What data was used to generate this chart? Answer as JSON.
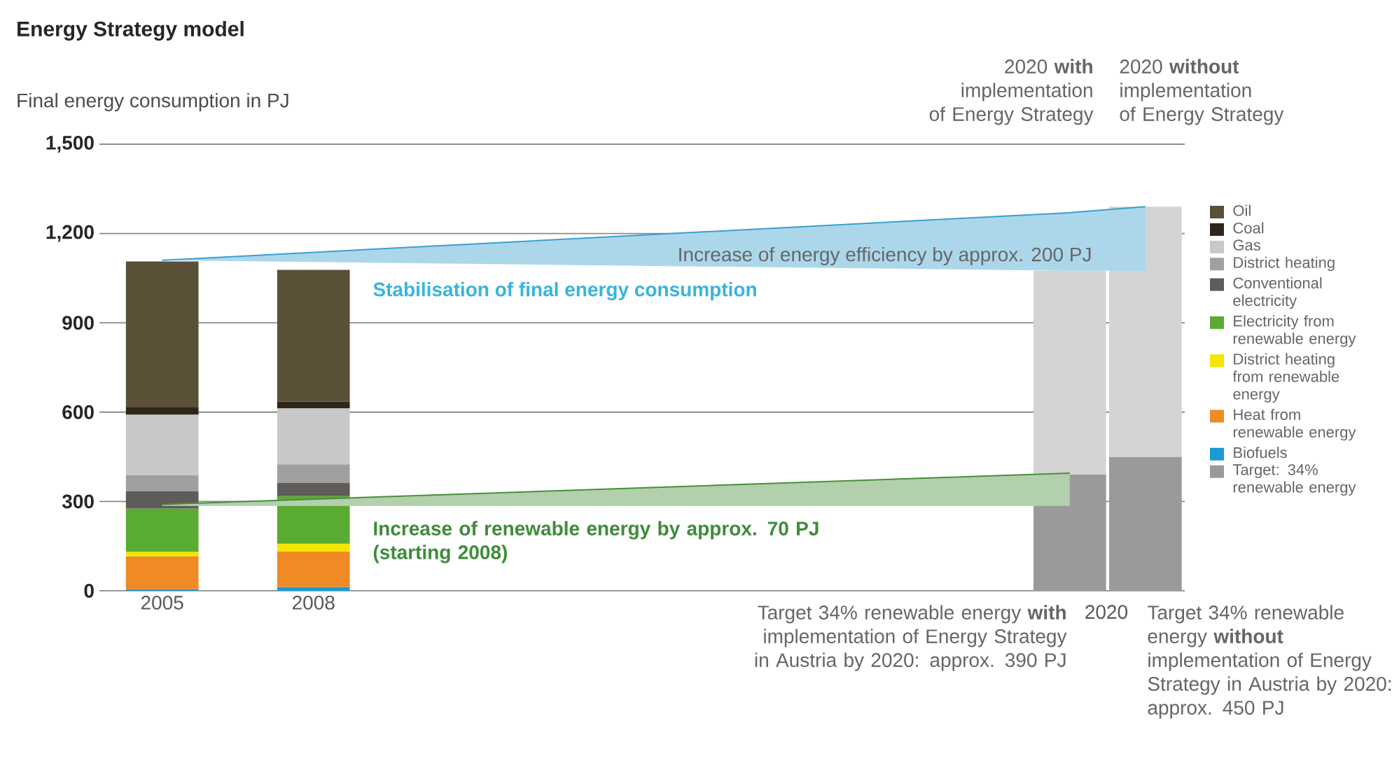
{
  "chart_data": {
    "type": "bar",
    "stacked": true,
    "title": "Energy Strategy model",
    "ylabel": "Final energy consumption in PJ",
    "categories": [
      "2005",
      null,
      "2008",
      null,
      null,
      null,
      null,
      null,
      null,
      null,
      null,
      null,
      null,
      null
    ],
    "ylim": [
      0,
      1500
    ],
    "yticks": [
      0,
      300,
      600,
      900,
      {
        "value": 1200,
        "label": "1,200"
      },
      {
        "value": 1500,
        "label": "1,500"
      }
    ],
    "grid": "y",
    "legend": "right",
    "series": [
      {
        "type": "line",
        "color": "#3a9fd0",
        "values": [
          1110,
          null,
          null,
          null,
          null,
          null,
          null,
          null,
          null,
          null,
          null,
          null,
          1270,
          1290
        ],
        "upper": [
          1110,
          null,
          null,
          null,
          null,
          null,
          null,
          null,
          null,
          null,
          null,
          null,
          1270,
          1290
        ],
        "lower": [
          1110,
          null,
          null,
          null,
          null,
          null,
          null,
          null,
          null,
          null,
          null,
          null,
          1075,
          1075
        ]
      },
      {
        "type": "line",
        "color": "#4a8f3c",
        "values": [
          290,
          null,
          null,
          null,
          null,
          null,
          null,
          null,
          null,
          null,
          null,
          null,
          395,
          null
        ],
        "upper": [
          290,
          null,
          null,
          null,
          null,
          null,
          null,
          null,
          null,
          null,
          null,
          null,
          395,
          null
        ],
        "lower": [
          285,
          null,
          null,
          null,
          null,
          null,
          null,
          null,
          null,
          null,
          null,
          null,
          285,
          null
        ]
      },
      {
        "name": "Biofuels",
        "color": "#1a9ad6",
        "values": [
          5,
          null,
          13,
          null,
          null,
          null,
          null,
          null,
          null,
          null,
          null,
          null,
          null,
          null
        ]
      },
      {
        "name": "Heat from renewable energy",
        "color": "#f08a24",
        "values": [
          111,
          null,
          119,
          null,
          null,
          null,
          null,
          null,
          null,
          null,
          null,
          null,
          null,
          null
        ]
      },
      {
        "name": "District heating from renewable energy",
        "color": "#f5e600",
        "values": [
          15,
          null,
          26,
          null,
          null,
          null,
          null,
          null,
          null,
          null,
          null,
          null,
          null,
          null
        ]
      },
      {
        "name": "Electricity from renewable energy",
        "color": "#5aab32",
        "values": [
          145,
          null,
          160,
          null,
          null,
          null,
          null,
          null,
          null,
          null,
          null,
          null,
          null,
          null
        ]
      },
      {
        "name": "Conventional electricity",
        "color": "#5f5b58",
        "values": [
          58,
          null,
          44,
          null,
          null,
          null,
          null,
          null,
          null,
          null,
          null,
          null,
          null,
          null
        ]
      },
      {
        "name": "District heating",
        "color": "#a0a0a0",
        "values": [
          55,
          null,
          63,
          null,
          null,
          null,
          null,
          null,
          null,
          null,
          null,
          null,
          null,
          null
        ]
      },
      {
        "name": "Gas",
        "color": "#c8c8c8",
        "values": [
          203,
          null,
          188,
          null,
          null,
          null,
          null,
          null,
          null,
          null,
          null,
          null,
          null,
          null
        ]
      },
      {
        "name": "Coal",
        "color": "#2e2618",
        "values": [
          24,
          null,
          23,
          null,
          null,
          null,
          null,
          null,
          null,
          null,
          null,
          null,
          null,
          null
        ]
      },
      {
        "name": "Oil",
        "color": "#5a5038",
        "values": [
          490,
          null,
          442,
          null,
          null,
          null,
          null,
          null,
          null,
          null,
          null,
          null,
          null,
          null
        ]
      },
      {
        "name": "Target: 34% renewable energy",
        "color": "#9a9a9a",
        "values": [
          null,
          null,
          null,
          null,
          null,
          null,
          null,
          null,
          null,
          null,
          null,
          null,
          390,
          450
        ]
      },
      {
        "color": "#d4d4d4",
        "values": [
          null,
          null,
          null,
          null,
          null,
          null,
          null,
          null,
          null,
          null,
          null,
          null,
          685,
          840
        ]
      }
    ],
    "annotations": [
      "Increase of energy efficiency by approx. 200 PJ",
      "Stabilisation of final energy consumption",
      "Increase of renewable energy by approx. 70 PJ (starting 2008)",
      "2020 **with** implementation of Energy Strategy",
      "2020 **without** implementation of Energy Strategy",
      "2020",
      "Target 34% renewable energy **with** implementation of Energy Strategy in Austria by 2020: approx. 390 PJ",
      "Target 34% renewable energy **without** implementation of Energy Strategy in Austria by 2020: approx. 450 PJ"
    ]
  }
}
